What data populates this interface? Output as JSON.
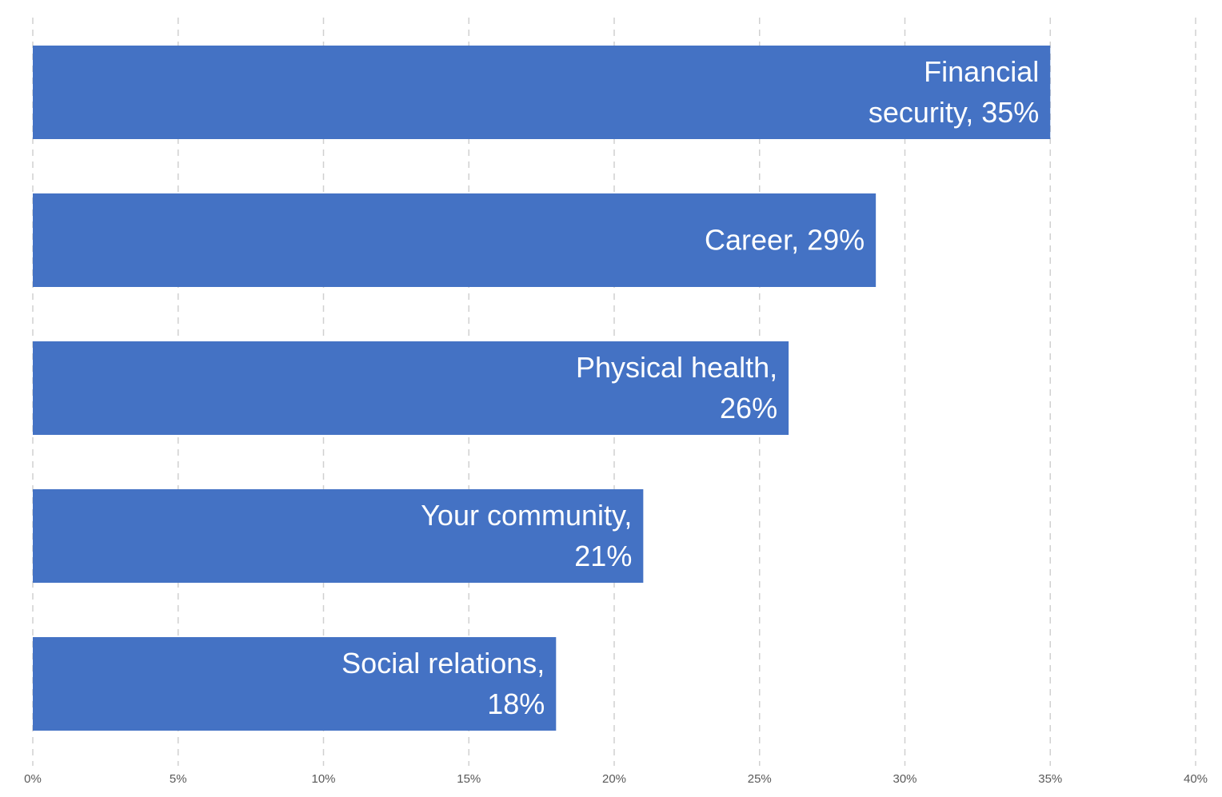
{
  "chart_data": {
    "type": "bar",
    "orientation": "horizontal",
    "categories": [
      "Financial security",
      "Career",
      "Physical health",
      "Your community",
      "Social relations"
    ],
    "values": [
      35,
      29,
      26,
      21,
      18
    ],
    "data_labels": [
      [
        "Financial",
        "security, 35%"
      ],
      [
        "Career, 29%"
      ],
      [
        "Physical health,",
        "26%"
      ],
      [
        "Your community,",
        "21%"
      ],
      [
        "Social relations,",
        "18%"
      ]
    ],
    "xlim": [
      0,
      40
    ],
    "x_ticks": [
      0,
      5,
      10,
      15,
      20,
      25,
      30,
      35,
      40
    ],
    "x_tick_labels": [
      "0%",
      "5%",
      "10%",
      "15%",
      "20%",
      "25%",
      "30%",
      "35%",
      "40%"
    ],
    "grid": "vertical dashed",
    "bar_color": "#4472c4",
    "title": "",
    "xlabel": "",
    "ylabel": ""
  }
}
